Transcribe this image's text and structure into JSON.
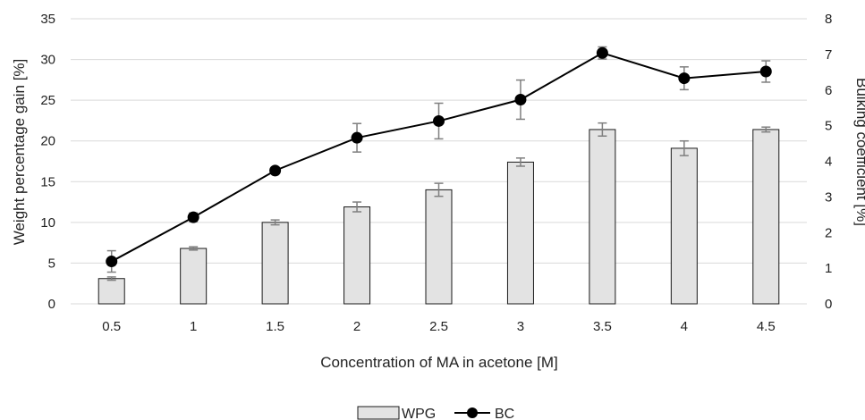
{
  "chart_data": {
    "type": "bar",
    "categories": [
      "0.5",
      "1",
      "1.5",
      "2",
      "2.5",
      "3",
      "3.5",
      "4",
      "4.5"
    ],
    "xlabel": "Concentration of MA in acetone [M]",
    "ylabel": "Weight percentage gain [%]",
    "y2label": "Bulking coefficient [%]",
    "ylim": [
      0,
      35
    ],
    "y2lim": [
      0,
      8
    ],
    "yticks": [
      "0",
      "5",
      "10",
      "15",
      "20",
      "25",
      "30",
      "35"
    ],
    "y2ticks": [
      "0",
      "1",
      "2",
      "3",
      "4",
      "5",
      "6",
      "7",
      "8"
    ],
    "grid": "horizontal",
    "legend_position": "bottom",
    "series": [
      {
        "name": "WPG",
        "type": "bar",
        "axis": "left",
        "values": [
          3.1,
          6.8,
          10.0,
          11.9,
          14.0,
          17.4,
          21.4,
          19.1,
          21.4
        ],
        "errors": [
          0.2,
          0.2,
          0.3,
          0.6,
          0.8,
          0.5,
          0.8,
          0.9,
          0.3
        ]
      },
      {
        "name": "BC",
        "type": "line",
        "axis": "right",
        "values": [
          1.19,
          2.43,
          3.74,
          4.66,
          5.13,
          5.73,
          7.04,
          6.33,
          6.52
        ],
        "errors": [
          0.3,
          0.12,
          0.05,
          0.4,
          0.5,
          0.55,
          0.17,
          0.32,
          0.3
        ]
      }
    ],
    "colors": {
      "bar_fill": "#e3e3e3",
      "bar_stroke": "#1a1a1a",
      "line": "#000000",
      "grid": "#d9d9d9",
      "error": "#7f7f7f"
    }
  }
}
